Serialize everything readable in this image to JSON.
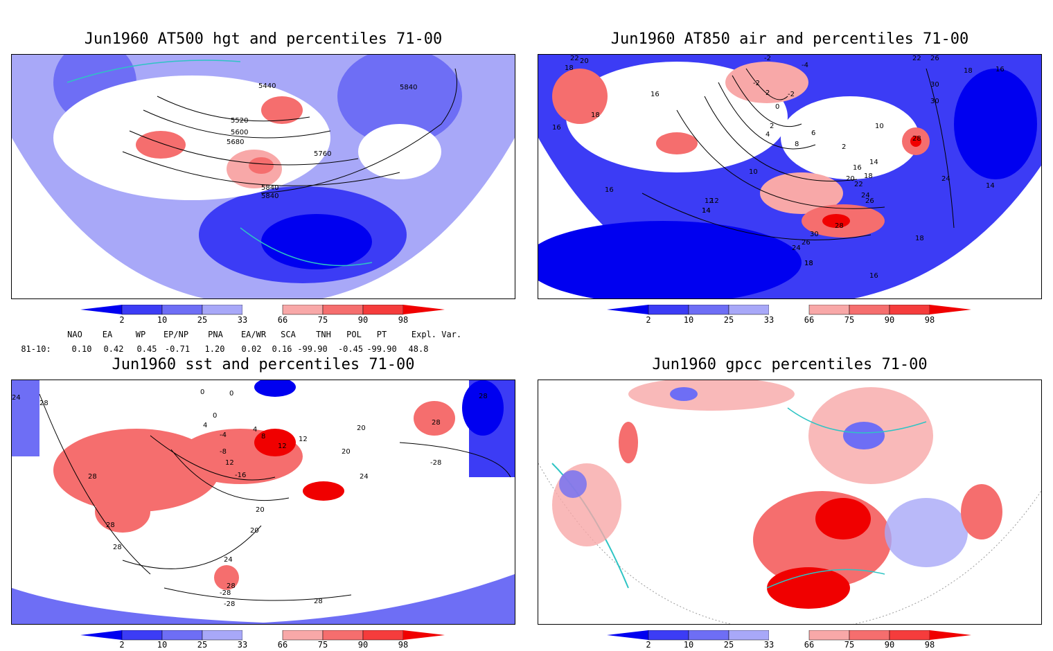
{
  "panels": [
    {
      "title": "Jun1960 AT500 hgt and percentiles 71-00",
      "contour_labels": [
        "5440",
        "5520",
        "5600",
        "5680",
        "5760",
        "5840",
        "5840",
        "5840"
      ]
    },
    {
      "title": "Jun1960 AT850 air and percentiles 71-00",
      "contour_labels": [
        "22",
        "20",
        "18",
        "16",
        "16",
        "18",
        "16",
        "-2",
        "-2",
        "-4",
        "2",
        "0",
        "-2",
        "4",
        "2",
        "6",
        "8",
        "2",
        "10",
        "10",
        "12",
        "14",
        "14",
        "16",
        "18",
        "20",
        "22",
        "24",
        "26",
        "28",
        "30",
        "28",
        "30",
        "30",
        "26",
        "24",
        "18",
        "16",
        "18",
        "14",
        "12",
        "14",
        "18",
        "18",
        "24",
        "22",
        "26",
        "16"
      ]
    },
    {
      "title": "Jun1960 sst and percentiles 71-00",
      "contour_labels": [
        "24",
        "28",
        "28",
        "28",
        "28",
        "0",
        "0",
        "0",
        "4",
        "4",
        "-4",
        "8",
        "12",
        "12",
        "-8",
        "12",
        "-16",
        "20",
        "20",
        "20",
        "24",
        "28",
        "28",
        "-28",
        "20",
        "24",
        "-28",
        "28",
        "28",
        "-28"
      ]
    },
    {
      "title": "Jun1960 gpcc percentiles 71-00",
      "contour_labels": []
    }
  ],
  "colorbar": {
    "labels": [
      "2",
      "10",
      "25",
      "33",
      "66",
      "75",
      "90",
      "98"
    ],
    "colors": [
      "#0000f0",
      "#3c3cf5",
      "#6e6ef5",
      "#a8a8f8",
      "#ffffff",
      "#f8a8a8",
      "#f56e6e",
      "#f53c3c",
      "#f00000"
    ]
  },
  "indices": {
    "headers": [
      "NAO",
      "EA",
      "WP",
      "EP/NP",
      "PNA",
      "EA/WR",
      "SCA",
      "TNH",
      "POL",
      "PT",
      "Expl. Var."
    ],
    "row_label": "81-10:",
    "values": [
      "0.10",
      "0.42",
      "0.45",
      "-0.71",
      "1.20",
      "0.02",
      "0.16",
      "-99.90",
      "-0.45",
      "-99.90",
      "48.8"
    ]
  },
  "colors": {
    "land_outline": "#2ec4c4",
    "contour": "#000000",
    "frame": "#000000"
  }
}
